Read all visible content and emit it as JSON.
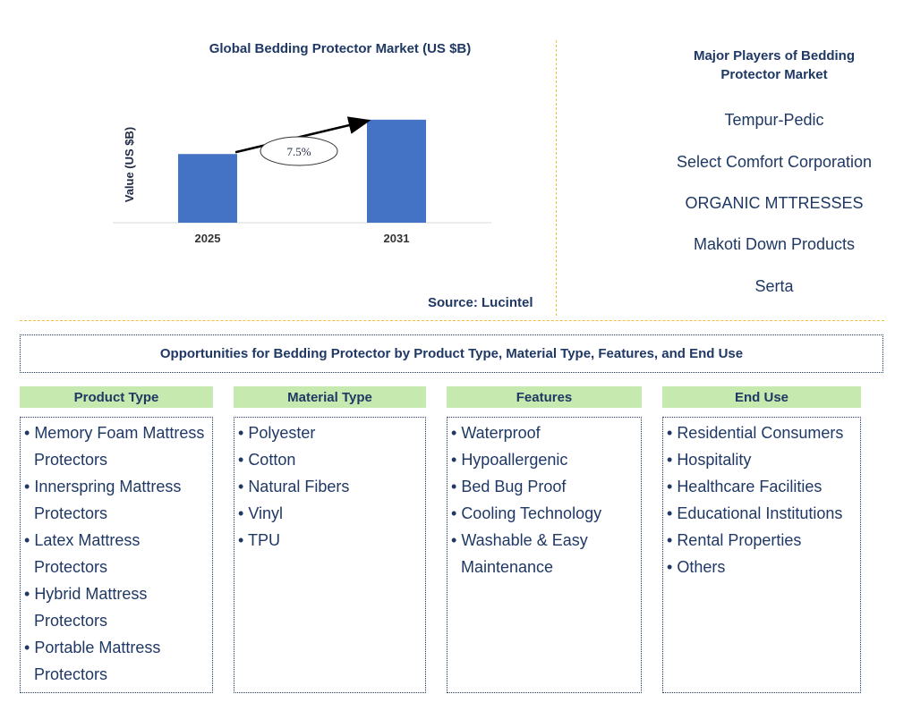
{
  "chart_data": {
    "type": "bar",
    "title": "Global Bedding Protector Market (US $B)",
    "ylabel": "Value (US $B)",
    "categories": [
      "2025",
      "2031"
    ],
    "values": [
      1.0,
      1.5
    ],
    "ylim": [
      0,
      1.55
    ],
    "annotation": "7.5%",
    "grid": false,
    "bar_color": "#4472c4",
    "source": "Source: Lucintel"
  },
  "players": {
    "title": "Major Players of Bedding Protector Market",
    "items": [
      "Tempur-Pedic",
      "Select Comfort Corporation",
      "ORGANIC MTTRESSES",
      "Makoti Down Products",
      "Serta"
    ]
  },
  "opportunities": {
    "title": "Opportunities for Bedding Protector by Product Type, Material Type, Features, and End Use"
  },
  "segments": [
    {
      "header": "Product Type",
      "items": [
        "Memory Foam Mattress Protectors",
        "Innerspring Mattress Protectors",
        "Latex Mattress Protectors",
        "Hybrid Mattress Protectors",
        "Portable Mattress Protectors"
      ]
    },
    {
      "header": "Material Type",
      "items": [
        "Polyester",
        "Cotton",
        "Natural Fibers",
        "Vinyl",
        "TPU"
      ]
    },
    {
      "header": "Features",
      "items": [
        "Waterproof",
        "Hypoallergenic",
        "Bed Bug Proof",
        "Cooling Technology",
        "Washable & Easy Maintenance"
      ]
    },
    {
      "header": "End Use",
      "items": [
        "Residential Consumers",
        "Hospitality",
        "Healthcare Facilities",
        "Educational Institutions",
        "Rental Properties",
        "Others"
      ]
    }
  ],
  "colors": {
    "header_green": "#c6e9b0",
    "text_navy": "#1f3864",
    "divider_gold": "#f0c040"
  }
}
